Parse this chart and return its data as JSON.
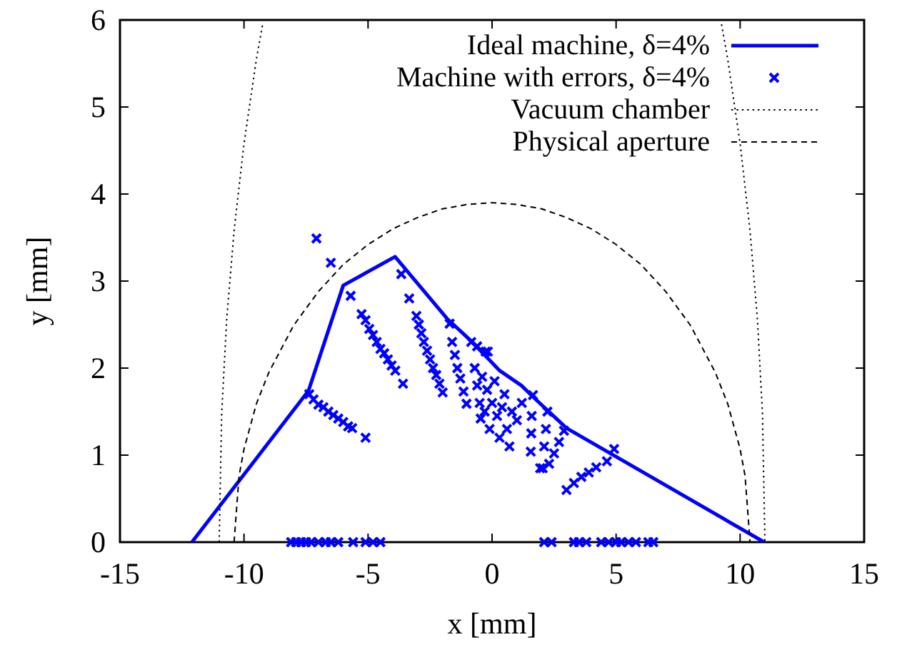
{
  "chart_data": {
    "type": "line",
    "xlabel": "x [mm]",
    "ylabel": "y [mm]",
    "xlim": [
      -15,
      15
    ],
    "ylim": [
      0,
      6
    ],
    "xticks": [
      -15,
      -10,
      -5,
      0,
      5,
      10,
      15
    ],
    "yticks": [
      0,
      1,
      2,
      3,
      4,
      5,
      6
    ],
    "grid": false,
    "legend": "top right",
    "series": [
      {
        "name": "Ideal machine, δ=4%",
        "line_style": "solid",
        "color": "#0000ff",
        "x": [
          -12.1,
          -7.4,
          -6.0,
          -3.91,
          -1.82,
          -0.84,
          0.31,
          1.18,
          1.65,
          3.0,
          10.97
        ],
        "values": [
          0,
          1.74,
          2.95,
          3.28,
          2.57,
          2.31,
          1.97,
          1.8,
          1.67,
          1.31,
          0
        ]
      },
      {
        "name": "Machine with errors, δ=4%",
        "type": "scatter",
        "marker": "cross",
        "color": "#0000ff",
        "x": [
          -7.08,
          -6.5,
          -5.7,
          -3.66,
          -3.34,
          -3.59,
          -5.1,
          -5.26,
          -5.1,
          -4.95,
          -4.8,
          -4.65,
          -4.5,
          -4.35,
          -4.2,
          -4.05,
          -3.9,
          -7.37,
          -7.2,
          -7.0,
          -6.8,
          -6.6,
          -6.4,
          -6.2,
          -6.0,
          -5.8,
          -5.64,
          -3.05,
          -2.95,
          -2.85,
          -2.75,
          -2.62,
          -2.5,
          -2.38,
          -2.25,
          -2.12,
          -1.99,
          -1.71,
          -1.61,
          -1.5,
          -1.4,
          -1.28,
          -1.15,
          -1.03,
          -0.46,
          -0.84,
          -0.6,
          -0.26,
          -0.17,
          -0.7,
          -0.6,
          -0.5,
          -0.4,
          -0.3,
          -0.2,
          -0.1,
          0,
          0.1,
          0.2,
          0.3,
          0.4,
          0.5,
          0.6,
          0.7,
          0.8,
          1.0,
          1.2,
          1.56,
          1.94,
          1.65,
          1.6,
          1.58,
          2.23,
          2.17,
          2.1,
          2.04,
          2.9,
          2.7,
          2.5,
          2.3,
          3.0,
          3.3,
          3.6,
          3.9,
          4.2,
          4.63,
          4.92,
          -8.1,
          -7.9,
          -7.7,
          -7.5,
          -7.3,
          -7.0,
          -6.7,
          -6.5,
          -6.2,
          -5.6,
          -5.1,
          -4.8,
          -4.5,
          2.1,
          2.4,
          3.3,
          3.5,
          3.8,
          4.4,
          4.7,
          5.0,
          5.2,
          5.5,
          5.8,
          6.3,
          6.5
        ],
        "values": [
          3.49,
          3.21,
          2.83,
          3.08,
          2.8,
          1.82,
          1.2,
          2.62,
          2.55,
          2.45,
          2.38,
          2.3,
          2.22,
          2.17,
          2.1,
          2.03,
          1.97,
          1.7,
          1.64,
          1.58,
          1.55,
          1.5,
          1.46,
          1.42,
          1.38,
          1.33,
          1.31,
          2.6,
          2.5,
          2.4,
          2.3,
          2.2,
          2.1,
          2.0,
          1.92,
          1.82,
          1.72,
          2.51,
          2.3,
          2.15,
          2.0,
          1.88,
          1.73,
          1.59,
          1.42,
          2.3,
          2.25,
          2.19,
          2.19,
          2.0,
          1.8,
          1.6,
          1.9,
          1.5,
          1.75,
          1.3,
          1.6,
          1.85,
          1.45,
          1.2,
          1.55,
          1.7,
          1.3,
          1.1,
          1.5,
          1.4,
          1.6,
          1.04,
          0.85,
          1.69,
          1.45,
          1.25,
          1.5,
          1.3,
          1.1,
          0.85,
          1.28,
          1.15,
          1.02,
          0.9,
          0.6,
          0.68,
          0.75,
          0.8,
          0.86,
          0.93,
          1.07,
          0,
          0,
          0,
          0,
          0,
          0,
          0,
          0,
          0,
          0,
          0,
          0,
          0,
          0,
          0,
          0,
          0,
          0,
          0,
          0,
          0,
          0,
          0,
          0,
          0,
          0
        ]
      },
      {
        "name": "Vacuum chamber",
        "line_style": "dotted",
        "color": "#000000",
        "x": [
          -11,
          -10.9,
          -10.7,
          -10.4,
          -10,
          -9.5,
          -9.25,
          0,
          9.25,
          9.5,
          10,
          10.4,
          10.7,
          10.9,
          11
        ],
        "values": [
          0,
          1.48,
          2.55,
          3.58,
          4.58,
          5.55,
          5.95,
          null,
          5.95,
          5.55,
          4.58,
          3.58,
          2.55,
          1.48,
          0
        ]
      },
      {
        "name": "Physical aperture",
        "line_style": "dashed",
        "color": "#000000",
        "x": [
          -10.4,
          -10.2,
          -10,
          -9.5,
          -9,
          -8,
          -7,
          -6,
          -5,
          -4,
          -3,
          -2,
          -1,
          0,
          1,
          2,
          3,
          4,
          5,
          6,
          7,
          8,
          9,
          9.5,
          10,
          10.2,
          10.4
        ],
        "values": [
          0,
          0.76,
          1.07,
          1.59,
          1.95,
          2.49,
          2.88,
          3.19,
          3.42,
          3.6,
          3.73,
          3.83,
          3.88,
          3.9,
          3.88,
          3.83,
          3.73,
          3.6,
          3.42,
          3.19,
          2.88,
          2.49,
          1.95,
          1.59,
          1.07,
          0.76,
          0
        ]
      }
    ]
  }
}
